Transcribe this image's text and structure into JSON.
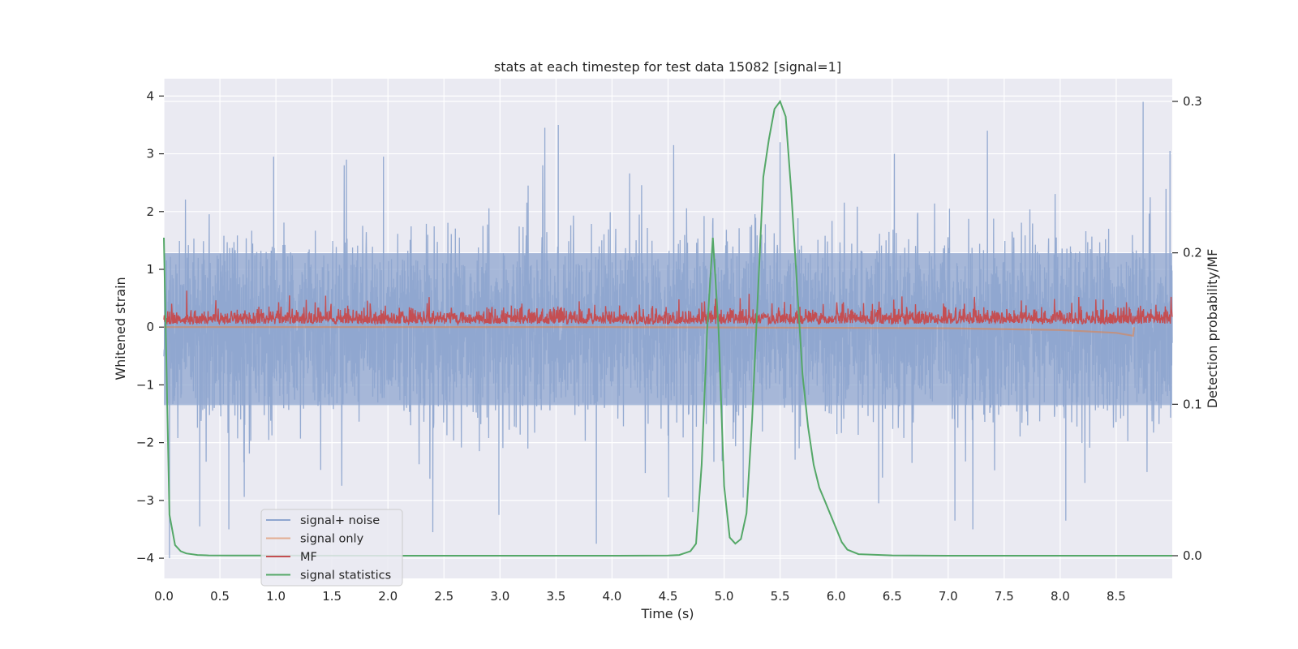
{
  "chart_data": {
    "type": "line",
    "title": "stats at each timestep for test data 15082 [signal=1]",
    "xlabel": "Time (s)",
    "ylabel": "Whitened strain",
    "y2label": "Detection probability/MF",
    "xlim": [
      0.0,
      9.0
    ],
    "ylim": [
      -4.35,
      4.3
    ],
    "y2lim": [
      -0.015,
      0.315
    ],
    "xticks": [
      "0.0",
      "0.5",
      "1.0",
      "1.5",
      "2.0",
      "2.5",
      "3.0",
      "3.5",
      "4.0",
      "4.5",
      "5.0",
      "5.5",
      "6.0",
      "6.5",
      "7.0",
      "7.5",
      "8.0",
      "8.5"
    ],
    "yticks": [
      "4",
      "3",
      "2",
      "1",
      "0",
      "−1",
      "−2",
      "−3",
      "−4"
    ],
    "y2ticks": [
      "0.3",
      "0.2",
      "0.1",
      "0.0"
    ],
    "grid": true,
    "legend_position": "lower-left",
    "colors": {
      "background": "#eaeaf2",
      "grid": "#ffffff",
      "signal_noise": "#8fa6cf",
      "signal_only": "#dd8452",
      "mf": "#c44e52",
      "signal_statistics": "#55a868"
    },
    "series": [
      {
        "name": "signal+ noise",
        "axis": "left",
        "description_of_envelope": "noisy strain spanning roughly -4 to 3.9",
        "dense_band": [
          -1.35,
          1.28
        ],
        "peaks": [
          {
            "x": 0.98,
            "y": 2.95
          },
          {
            "x": 1.63,
            "y": 2.9
          },
          {
            "x": 1.96,
            "y": 2.95
          },
          {
            "x": 3.4,
            "y": 3.45
          },
          {
            "x": 3.52,
            "y": 3.5
          },
          {
            "x": 4.55,
            "y": 3.15
          },
          {
            "x": 5.5,
            "y": 3.2
          },
          {
            "x": 6.52,
            "y": 3.0
          },
          {
            "x": 7.35,
            "y": 3.4
          },
          {
            "x": 8.74,
            "y": 3.9
          },
          {
            "x": 8.98,
            "y": 3.05
          }
        ],
        "troughs": [
          {
            "x": 0.05,
            "y": -4.0
          },
          {
            "x": 0.32,
            "y": -3.45
          },
          {
            "x": 0.58,
            "y": -3.5
          },
          {
            "x": 2.4,
            "y": -3.55
          },
          {
            "x": 2.99,
            "y": -3.25
          },
          {
            "x": 3.86,
            "y": -3.75
          },
          {
            "x": 4.72,
            "y": -3.2
          },
          {
            "x": 6.38,
            "y": -3.05
          },
          {
            "x": 7.06,
            "y": -3.35
          },
          {
            "x": 7.22,
            "y": -3.5
          },
          {
            "x": 8.05,
            "y": -3.35
          }
        ]
      },
      {
        "name": "signal only",
        "axis": "left",
        "x": [
          0.0,
          4.0,
          7.0,
          8.0,
          8.5,
          8.65,
          8.66
        ],
        "y": [
          0.0,
          0.0,
          -0.02,
          -0.05,
          -0.1,
          -0.15,
          0.0
        ]
      },
      {
        "name": "MF",
        "axis": "right",
        "description_of_envelope": "noisy matched-filter output fluctuating around 0.16 (between ~0.15 and ~0.19)",
        "base": 0.153,
        "peak": 0.188
      },
      {
        "name": "signal statistics",
        "axis": "right",
        "x": [
          0.0,
          0.05,
          0.1,
          0.15,
          0.2,
          0.3,
          0.4,
          0.6,
          1.0,
          2.0,
          3.0,
          4.0,
          4.5,
          4.6,
          4.7,
          4.75,
          4.8,
          4.85,
          4.9,
          4.95,
          5.0,
          5.05,
          5.1,
          5.15,
          5.2,
          5.25,
          5.3,
          5.35,
          5.4,
          5.45,
          5.5,
          5.55,
          5.6,
          5.65,
          5.7,
          5.75,
          5.8,
          5.85,
          5.9,
          5.95,
          6.0,
          6.05,
          6.1,
          6.2,
          6.5,
          7.0,
          8.0,
          9.0
        ],
        "y": [
          0.21,
          0.027,
          0.007,
          0.003,
          0.0015,
          0.0005,
          0.0002,
          0.0001,
          0.0001,
          0.0,
          0.0,
          0.0,
          0.0001,
          0.0005,
          0.003,
          0.008,
          0.06,
          0.15,
          0.21,
          0.15,
          0.046,
          0.012,
          0.008,
          0.011,
          0.028,
          0.09,
          0.17,
          0.25,
          0.275,
          0.295,
          0.3,
          0.29,
          0.24,
          0.18,
          0.12,
          0.085,
          0.06,
          0.045,
          0.036,
          0.027,
          0.018,
          0.009,
          0.004,
          0.001,
          0.0002,
          0.0,
          0.0,
          0.0
        ]
      }
    ]
  }
}
